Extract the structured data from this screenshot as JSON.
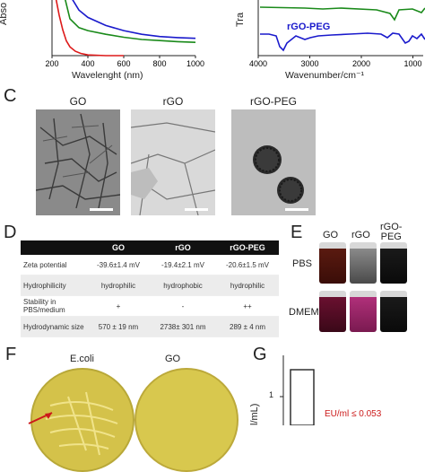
{
  "panel_labels": {
    "c": "C",
    "d": "D",
    "e": "E",
    "f": "F",
    "g": "G"
  },
  "chart_data": [
    {
      "type": "line",
      "xlabel": "Wavelenght (nm)",
      "ylabel": "Abso",
      "x_ticks": [
        "200",
        "400",
        "600",
        "800",
        "1000"
      ],
      "xlim": [
        200,
        1000
      ],
      "series": [
        {
          "color": "#1a1acc",
          "x": [
            200,
            260,
            300,
            350,
            400,
            500,
            600,
            700,
            800,
            900,
            1000
          ],
          "y": [
            1.0,
            0.98,
            0.82,
            0.62,
            0.52,
            0.41,
            0.34,
            0.29,
            0.26,
            0.245,
            0.235
          ]
        },
        {
          "color": "#1a8a1a",
          "x": [
            200,
            260,
            300,
            350,
            400,
            500,
            600,
            700,
            800,
            900,
            1000
          ],
          "y": [
            1.0,
            0.9,
            0.5,
            0.38,
            0.34,
            0.29,
            0.25,
            0.22,
            0.205,
            0.19,
            0.18
          ]
        },
        {
          "color": "#dd1a1a",
          "x": [
            200,
            220,
            240,
            260,
            280,
            300,
            330,
            360,
            400,
            500,
            600
          ],
          "y": [
            0.9,
            0.8,
            0.55,
            0.35,
            0.2,
            0.12,
            0.06,
            0.03,
            0.01,
            0.0,
            0.0
          ]
        }
      ]
    },
    {
      "type": "line",
      "xlabel": "Wavenumber/cm⁻¹",
      "ylabel": "Tra",
      "x_ticks": [
        "4000",
        "3000",
        "2000",
        "1000"
      ],
      "xlim": [
        4000,
        800
      ],
      "series": [
        {
          "name": "rGO-PEG",
          "color": "#1a1acc"
        },
        {
          "color": "#1a8a1a"
        }
      ]
    }
  ],
  "panel_c": {
    "titles": [
      "GO",
      "rGO",
      "rGO-PEG"
    ]
  },
  "panel_d": {
    "headers": [
      "",
      "GO",
      "rGO",
      "rGO-PEG"
    ],
    "rows": [
      [
        "Zeta potential",
        "-39.6±1.4 mV",
        "-19.4±2.1 mV",
        "-20.6±1.5 mV"
      ],
      [
        "Hydrophilicity",
        "hydrophilic",
        "hydrophobic",
        "hydrophilic"
      ],
      [
        "Stability in PBS/medium",
        "+",
        "-",
        "++"
      ],
      [
        "Hydrodynamic size",
        "570 ± 19 nm",
        "2738± 301 nm",
        "289 ± 4 nm"
      ]
    ]
  },
  "panel_e": {
    "cols": [
      "GO",
      "rGO",
      "rGO-\nPEG"
    ],
    "rows": [
      "PBS",
      "DMEM"
    ]
  },
  "panel_f": {
    "plates": [
      "E.coli",
      "GO"
    ]
  },
  "panel_g": {
    "y_tick": "1",
    "ylabel": "l/mL)",
    "annotation": "EU/ml ≤ 0.053"
  }
}
